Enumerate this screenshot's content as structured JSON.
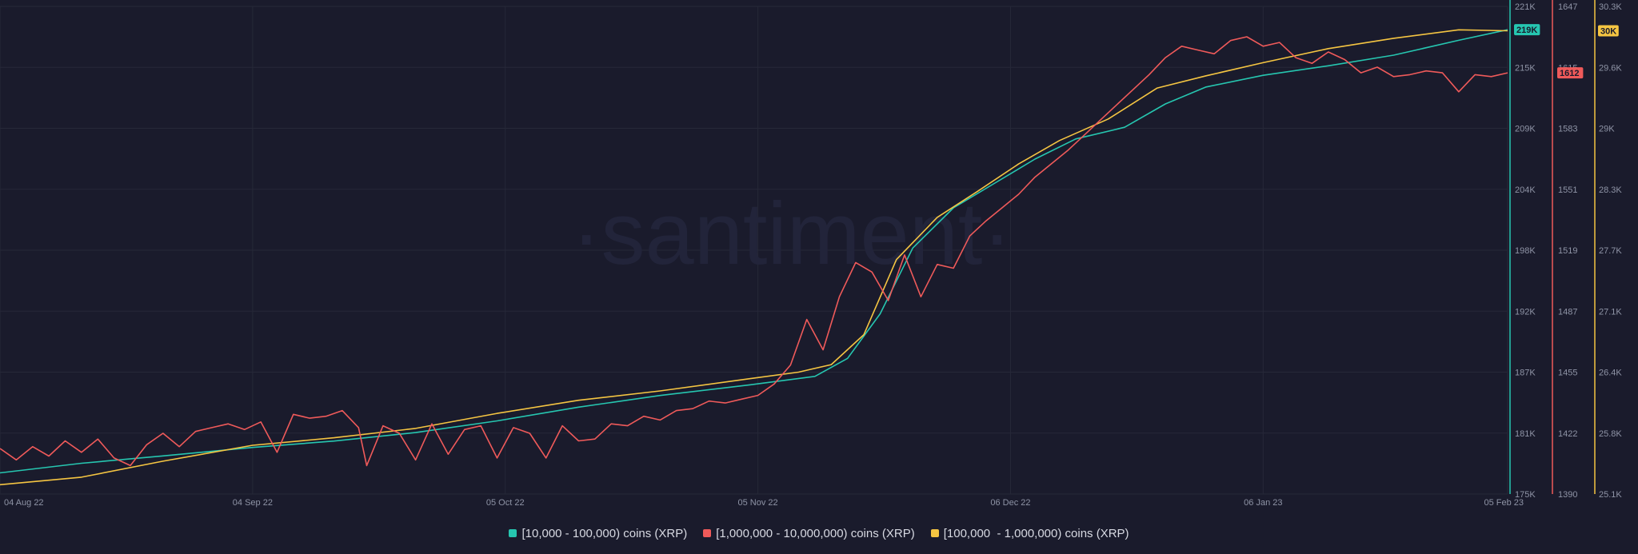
{
  "watermark": "·santiment·",
  "colors": {
    "background": "#1a1b2c",
    "grid": "#262838",
    "teal": "#26c6b0",
    "red": "#ef5a5a",
    "yellow": "#f5c542",
    "axis_text": "#8f94a6"
  },
  "chart_data": {
    "type": "line",
    "x_ticks": [
      "04 Aug 22",
      "04 Sep 22",
      "05 Oct 22",
      "05 Nov 22",
      "06 Dec 22",
      "06 Jan 23",
      "05 Feb 23"
    ],
    "x_range": [
      "2022-08-04",
      "2023-02-05"
    ],
    "grid": true,
    "legend_position": "bottom",
    "axes": [
      {
        "id": "teal",
        "ticks": [
          "221K",
          "215K",
          "209K",
          "204K",
          "198K",
          "192K",
          "187K",
          "181K",
          "175K"
        ],
        "range": [
          175000,
          221000
        ],
        "current_label": "219K"
      },
      {
        "id": "red",
        "ticks": [
          "1647",
          "1615",
          "1583",
          "1551",
          "1519",
          "1487",
          "1455",
          "1422",
          "1390"
        ],
        "range": [
          1390,
          1647
        ],
        "current_label": "1612"
      },
      {
        "id": "yellow",
        "ticks": [
          "30.3K",
          "29.6K",
          "29K",
          "28.3K",
          "27.7K",
          "27.1K",
          "26.4K",
          "25.8K",
          "25.1K"
        ],
        "range": [
          25100,
          30300
        ],
        "current_label": "30K"
      }
    ],
    "series": [
      {
        "name": "[10,000 - 100,000) coins (XRP)",
        "axis": "teal",
        "color": "#26c6b0",
        "points": [
          [
            "2022-08-04",
            177000
          ],
          [
            "2022-08-14",
            177900
          ],
          [
            "2022-08-24",
            178600
          ],
          [
            "2022-09-04",
            179400
          ],
          [
            "2022-09-14",
            180000
          ],
          [
            "2022-09-24",
            180800
          ],
          [
            "2022-10-04",
            181900
          ],
          [
            "2022-10-14",
            183200
          ],
          [
            "2022-10-24",
            184300
          ],
          [
            "2022-11-04",
            185300
          ],
          [
            "2022-11-12",
            186100
          ],
          [
            "2022-11-16",
            187800
          ],
          [
            "2022-11-20",
            192000
          ],
          [
            "2022-11-24",
            198200
          ],
          [
            "2022-11-29",
            202000
          ],
          [
            "2022-12-04",
            204300
          ],
          [
            "2022-12-09",
            206600
          ],
          [
            "2022-12-14",
            208500
          ],
          [
            "2022-12-20",
            209600
          ],
          [
            "2022-12-25",
            211800
          ],
          [
            "2022-12-30",
            213400
          ],
          [
            "2023-01-06",
            214500
          ],
          [
            "2023-01-14",
            215400
          ],
          [
            "2023-01-22",
            216400
          ],
          [
            "2023-01-30",
            217800
          ],
          [
            "2023-02-05",
            218800
          ]
        ]
      },
      {
        "name": "[1,000,000 - 10,000,000) coins (XRP)",
        "axis": "red",
        "color": "#ef5a5a",
        "points": [
          [
            "2022-08-04",
            1414
          ],
          [
            "2022-08-06",
            1408
          ],
          [
            "2022-08-08",
            1415
          ],
          [
            "2022-08-10",
            1410
          ],
          [
            "2022-08-12",
            1418
          ],
          [
            "2022-08-14",
            1412
          ],
          [
            "2022-08-16",
            1419
          ],
          [
            "2022-08-18",
            1409
          ],
          [
            "2022-08-20",
            1405
          ],
          [
            "2022-08-22",
            1416
          ],
          [
            "2022-08-24",
            1422
          ],
          [
            "2022-08-26",
            1415
          ],
          [
            "2022-08-28",
            1423
          ],
          [
            "2022-08-30",
            1425
          ],
          [
            "2022-09-01",
            1427
          ],
          [
            "2022-09-03",
            1424
          ],
          [
            "2022-09-05",
            1428
          ],
          [
            "2022-09-07",
            1412
          ],
          [
            "2022-09-09",
            1432
          ],
          [
            "2022-09-11",
            1430
          ],
          [
            "2022-09-13",
            1431
          ],
          [
            "2022-09-15",
            1434
          ],
          [
            "2022-09-17",
            1425
          ],
          [
            "2022-09-18",
            1405
          ],
          [
            "2022-09-20",
            1426
          ],
          [
            "2022-09-22",
            1422
          ],
          [
            "2022-09-24",
            1408
          ],
          [
            "2022-09-26",
            1427
          ],
          [
            "2022-09-28",
            1411
          ],
          [
            "2022-09-30",
            1424
          ],
          [
            "2022-10-02",
            1426
          ],
          [
            "2022-10-04",
            1409
          ],
          [
            "2022-10-06",
            1425
          ],
          [
            "2022-10-08",
            1422
          ],
          [
            "2022-10-10",
            1409
          ],
          [
            "2022-10-12",
            1426
          ],
          [
            "2022-10-14",
            1418
          ],
          [
            "2022-10-16",
            1419
          ],
          [
            "2022-10-18",
            1427
          ],
          [
            "2022-10-20",
            1426
          ],
          [
            "2022-10-22",
            1431
          ],
          [
            "2022-10-24",
            1429
          ],
          [
            "2022-10-26",
            1434
          ],
          [
            "2022-10-28",
            1435
          ],
          [
            "2022-10-30",
            1439
          ],
          [
            "2022-11-01",
            1438
          ],
          [
            "2022-11-03",
            1440
          ],
          [
            "2022-11-05",
            1442
          ],
          [
            "2022-11-07",
            1448
          ],
          [
            "2022-11-09",
            1458
          ],
          [
            "2022-11-11",
            1482
          ],
          [
            "2022-11-13",
            1466
          ],
          [
            "2022-11-15",
            1494
          ],
          [
            "2022-11-17",
            1512
          ],
          [
            "2022-11-19",
            1507
          ],
          [
            "2022-11-21",
            1492
          ],
          [
            "2022-11-23",
            1516
          ],
          [
            "2022-11-25",
            1494
          ],
          [
            "2022-11-27",
            1511
          ],
          [
            "2022-11-29",
            1509
          ],
          [
            "2022-12-01",
            1526
          ],
          [
            "2022-12-03",
            1534
          ],
          [
            "2022-12-05",
            1541
          ],
          [
            "2022-12-07",
            1548
          ],
          [
            "2022-12-09",
            1557
          ],
          [
            "2022-12-11",
            1564
          ],
          [
            "2022-12-13",
            1571
          ],
          [
            "2022-12-15",
            1579
          ],
          [
            "2022-12-17",
            1587
          ],
          [
            "2022-12-19",
            1595
          ],
          [
            "2022-12-21",
            1603
          ],
          [
            "2022-12-23",
            1611
          ],
          [
            "2022-12-25",
            1620
          ],
          [
            "2022-12-27",
            1626
          ],
          [
            "2022-12-29",
            1624
          ],
          [
            "2022-12-31",
            1622
          ],
          [
            "2023-01-02",
            1629
          ],
          [
            "2023-01-04",
            1631
          ],
          [
            "2023-01-06",
            1626
          ],
          [
            "2023-01-08",
            1628
          ],
          [
            "2023-01-10",
            1620
          ],
          [
            "2023-01-12",
            1617
          ],
          [
            "2023-01-14",
            1623
          ],
          [
            "2023-01-16",
            1619
          ],
          [
            "2023-01-18",
            1612
          ],
          [
            "2023-01-20",
            1615
          ],
          [
            "2023-01-22",
            1610
          ],
          [
            "2023-01-24",
            1611
          ],
          [
            "2023-01-26",
            1613
          ],
          [
            "2023-01-28",
            1612
          ],
          [
            "2023-01-30",
            1602
          ],
          [
            "2023-02-01",
            1611
          ],
          [
            "2023-02-03",
            1610
          ],
          [
            "2023-02-05",
            1612
          ]
        ]
      },
      {
        "name": "[100,000  - 1,000,000) coins (XRP)",
        "axis": "yellow",
        "color": "#f5c542",
        "points": [
          [
            "2022-08-04",
            25200
          ],
          [
            "2022-08-14",
            25280
          ],
          [
            "2022-08-24",
            25450
          ],
          [
            "2022-09-04",
            25620
          ],
          [
            "2022-09-14",
            25700
          ],
          [
            "2022-09-24",
            25800
          ],
          [
            "2022-10-04",
            25960
          ],
          [
            "2022-10-14",
            26100
          ],
          [
            "2022-10-24",
            26200
          ],
          [
            "2022-11-04",
            26330
          ],
          [
            "2022-11-10",
            26400
          ],
          [
            "2022-11-14",
            26480
          ],
          [
            "2022-11-18",
            26800
          ],
          [
            "2022-11-22",
            27600
          ],
          [
            "2022-11-27",
            28050
          ],
          [
            "2022-12-02",
            28330
          ],
          [
            "2022-12-07",
            28620
          ],
          [
            "2022-12-12",
            28870
          ],
          [
            "2022-12-18",
            29100
          ],
          [
            "2022-12-24",
            29430
          ],
          [
            "2022-12-30",
            29560
          ],
          [
            "2023-01-06",
            29700
          ],
          [
            "2023-01-14",
            29850
          ],
          [
            "2023-01-22",
            29960
          ],
          [
            "2023-01-30",
            30050
          ],
          [
            "2023-02-05",
            30040
          ]
        ]
      }
    ]
  }
}
